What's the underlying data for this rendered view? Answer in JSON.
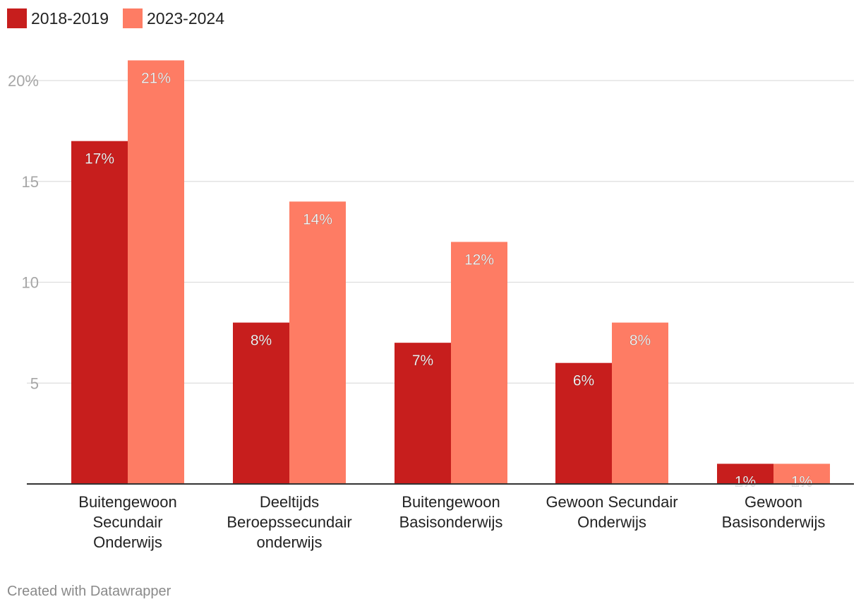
{
  "legend": [
    {
      "label": "2018-2019",
      "color": "#c71e1d"
    },
    {
      "label": "2023-2024",
      "color": "#fe7c64"
    }
  ],
  "footer": "Created with Datawrapper",
  "chart_data": {
    "type": "bar",
    "title": "",
    "xlabel": "",
    "ylabel": "",
    "ylim": [
      0,
      21
    ],
    "yticks": [
      {
        "value": 5,
        "label": "5"
      },
      {
        "value": 10,
        "label": "10"
      },
      {
        "value": 15,
        "label": "15"
      },
      {
        "value": 20,
        "label": "20%"
      }
    ],
    "grid": true,
    "categories": [
      [
        "Buitengewoon",
        "Secundair",
        "Onderwijs"
      ],
      [
        "Deeltijds",
        "Beroepssecundair",
        "onderwijs"
      ],
      [
        "Buitengewoon",
        "Basisonderwijs"
      ],
      [
        "Gewoon Secundair",
        "Onderwijs"
      ],
      [
        "Gewoon",
        "Basisonderwijs"
      ]
    ],
    "series": [
      {
        "name": "2018-2019",
        "color": "#c71e1d",
        "values": [
          17,
          8,
          7,
          6,
          1
        ],
        "labels": [
          "17%",
          "8%",
          "7%",
          "6%",
          "1%"
        ]
      },
      {
        "name": "2023-2024",
        "color": "#fe7c64",
        "values": [
          21,
          14,
          12,
          8,
          1
        ],
        "labels": [
          "21%",
          "14%",
          "12%",
          "8%",
          "1%"
        ]
      }
    ]
  }
}
